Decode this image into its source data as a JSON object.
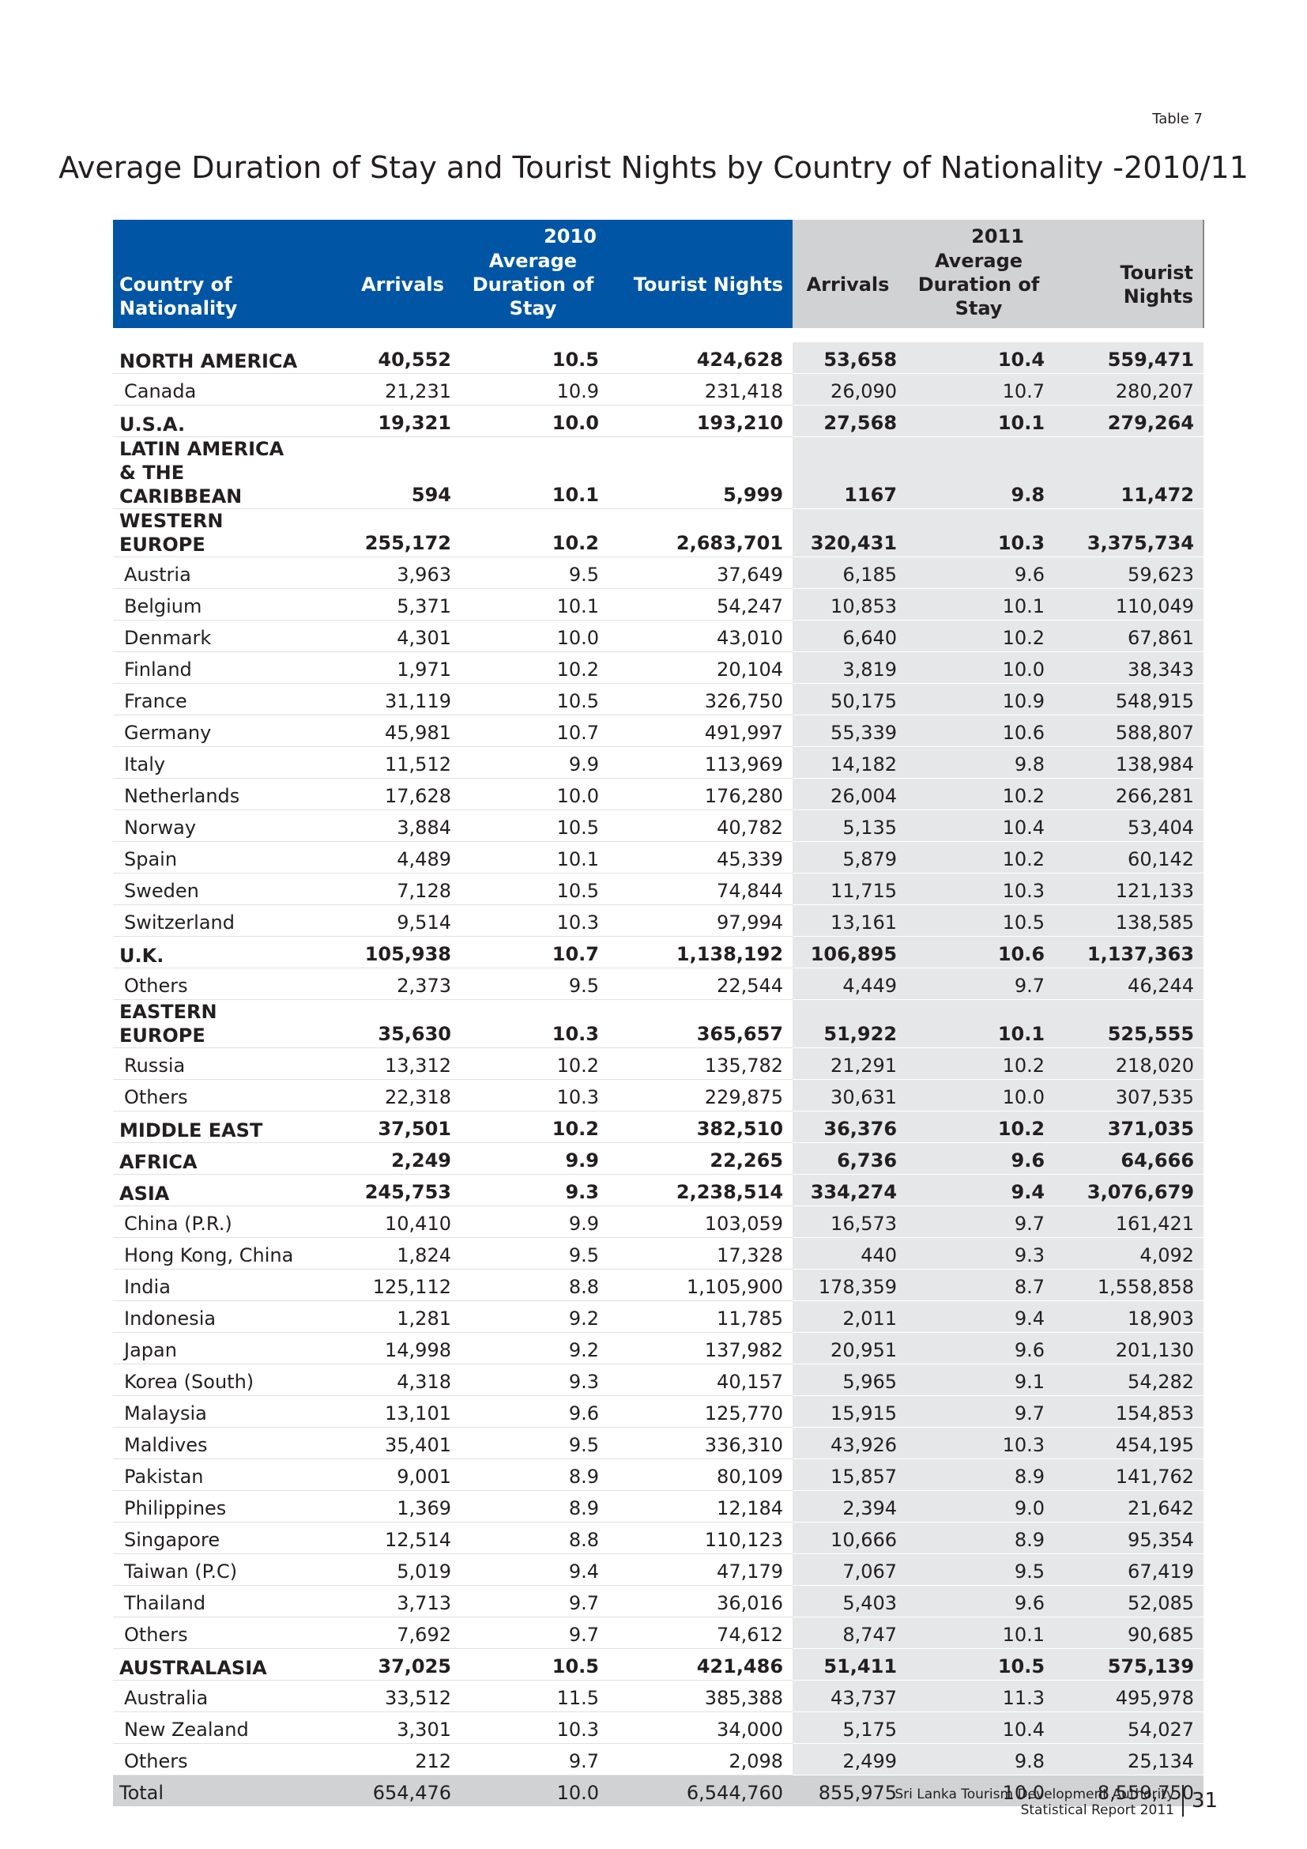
{
  "header": {
    "table_label": "Table 7",
    "title": "Average Duration of Stay and Tourist Nights by Country of Nationality -2010/11"
  },
  "table": {
    "groups": [
      "2010",
      "2011"
    ],
    "columns": [
      "Country of Nationality",
      "Arrivals",
      "Average Duration of Stay",
      "Tourist Nights",
      "Arrivals",
      "Average Duration of Stay",
      "Tourist Nights"
    ],
    "rows": [
      [
        "NORTH AMERICA",
        "40,552",
        "10.5",
        "424,628",
        "53,658",
        "10.4",
        "559,471"
      ],
      [
        "Canada",
        "21,231",
        "10.9",
        "231,418",
        "26,090",
        "10.7",
        "280,207"
      ],
      [
        "U.S.A.",
        "19,321",
        "10.0",
        "193,210",
        "27,568",
        "10.1",
        "279,264"
      ],
      [
        "LATIN AMERICA & THE CARIBBEAN",
        "594",
        "10.1",
        "5,999",
        "1167",
        "9.8",
        "11,472"
      ],
      [
        "WESTERN EUROPE",
        "255,172",
        "10.2",
        "2,683,701",
        "320,431",
        "10.3",
        "3,375,734"
      ],
      [
        "Austria",
        "3,963",
        "9.5",
        "37,649",
        "6,185",
        "9.6",
        "59,623"
      ],
      [
        "Belgium",
        "5,371",
        "10.1",
        "54,247",
        "10,853",
        "10.1",
        "110,049"
      ],
      [
        "Denmark",
        "4,301",
        "10.0",
        "43,010",
        "6,640",
        "10.2",
        "67,861"
      ],
      [
        "Finland",
        "1,971",
        "10.2",
        "20,104",
        "3,819",
        "10.0",
        "38,343"
      ],
      [
        "France",
        "31,119",
        "10.5",
        "326,750",
        "50,175",
        "10.9",
        "548,915"
      ],
      [
        "Germany",
        "45,981",
        "10.7",
        "491,997",
        "55,339",
        "10.6",
        "588,807"
      ],
      [
        "Italy",
        "11,512",
        "9.9",
        "113,969",
        "14,182",
        "9.8",
        "138,984"
      ],
      [
        "Netherlands",
        "17,628",
        "10.0",
        "176,280",
        "26,004",
        "10.2",
        "266,281"
      ],
      [
        "Norway",
        "3,884",
        "10.5",
        "40,782",
        "5,135",
        "10.4",
        "53,404"
      ],
      [
        "Spain",
        "4,489",
        "10.1",
        "45,339",
        "5,879",
        "10.2",
        "60,142"
      ],
      [
        "Sweden",
        "7,128",
        "10.5",
        "74,844",
        "11,715",
        "10.3",
        "121,133"
      ],
      [
        "Switzerland",
        "9,514",
        "10.3",
        "97,994",
        "13,161",
        "10.5",
        "138,585"
      ],
      [
        "U.K.",
        "105,938",
        "10.7",
        "1,138,192",
        "106,895",
        "10.6",
        "1,137,363"
      ],
      [
        "Others",
        "2,373",
        "9.5",
        "22,544",
        "4,449",
        "9.7",
        "46,244"
      ],
      [
        "EASTERN EUROPE",
        "35,630",
        "10.3",
        "365,657",
        "51,922",
        "10.1",
        "525,555"
      ],
      [
        "Russia",
        "13,312",
        "10.2",
        "135,782",
        "21,291",
        "10.2",
        "218,020"
      ],
      [
        "Others",
        "22,318",
        "10.3",
        "229,875",
        "30,631",
        "10.0",
        "307,535"
      ],
      [
        "MIDDLE EAST",
        "37,501",
        "10.2",
        "382,510",
        "36,376",
        "10.2",
        "371,035"
      ],
      [
        "AFRICA",
        "2,249",
        "9.9",
        "22,265",
        "6,736",
        "9.6",
        "64,666"
      ],
      [
        "ASIA",
        "245,753",
        "9.3",
        "2,238,514",
        "334,274",
        "9.4",
        "3,076,679"
      ],
      [
        "China (P.R.)",
        "10,410",
        "9.9",
        "103,059",
        "16,573",
        "9.7",
        "161,421"
      ],
      [
        "Hong Kong, China",
        "1,824",
        "9.5",
        "17,328",
        "440",
        "9.3",
        "4,092"
      ],
      [
        "India",
        "125,112",
        "8.8",
        "1,105,900",
        "178,359",
        "8.7",
        "1,558,858"
      ],
      [
        "Indonesia",
        "1,281",
        "9.2",
        "11,785",
        "2,011",
        "9.4",
        "18,903"
      ],
      [
        "Japan",
        "14,998",
        "9.2",
        "137,982",
        "20,951",
        "9.6",
        "201,130"
      ],
      [
        "Korea (South)",
        "4,318",
        "9.3",
        "40,157",
        "5,965",
        "9.1",
        "54,282"
      ],
      [
        "Malaysia",
        "13,101",
        "9.6",
        "125,770",
        "15,915",
        "9.7",
        "154,853"
      ],
      [
        "Maldives",
        "35,401",
        "9.5",
        "336,310",
        "43,926",
        "10.3",
        "454,195"
      ],
      [
        "Pakistan",
        "9,001",
        "8.9",
        "80,109",
        "15,857",
        "8.9",
        "141,762"
      ],
      [
        "Philippines",
        "1,369",
        "8.9",
        "12,184",
        "2,394",
        "9.0",
        "21,642"
      ],
      [
        "Singapore",
        "12,514",
        "8.8",
        "110,123",
        "10,666",
        "8.9",
        "95,354"
      ],
      [
        "Taiwan (P.C)",
        "5,019",
        "9.4",
        "47,179",
        "7,067",
        "9.5",
        "67,419"
      ],
      [
        "Thailand",
        "3,713",
        "9.7",
        "36,016",
        "5,403",
        "9.6",
        "52,085"
      ],
      [
        "Others",
        "7,692",
        "9.7",
        "74,612",
        "8,747",
        "10.1",
        "90,685"
      ],
      [
        "AUSTRALASIA",
        "37,025",
        "10.5",
        "421,486",
        "51,411",
        "10.5",
        "575,139"
      ],
      [
        "Australia",
        "33,512",
        "11.5",
        "385,388",
        "43,737",
        "11.3",
        "495,978"
      ],
      [
        "New Zealand",
        "3,301",
        "10.3",
        "34,000",
        "5,175",
        "10.4",
        "54,027"
      ],
      [
        "Others",
        "212",
        "9.7",
        "2,098",
        "2,499",
        "9.8",
        "25,134"
      ]
    ],
    "total": [
      "Total",
      "654,476",
      "10.0",
      "6,544,760",
      "855,975",
      "10.0",
      "8,559,750"
    ]
  },
  "footer": {
    "organization": "Sri Lanka Tourism Development Authority",
    "report": "Statistical Report 2011",
    "page_number": "31"
  }
}
